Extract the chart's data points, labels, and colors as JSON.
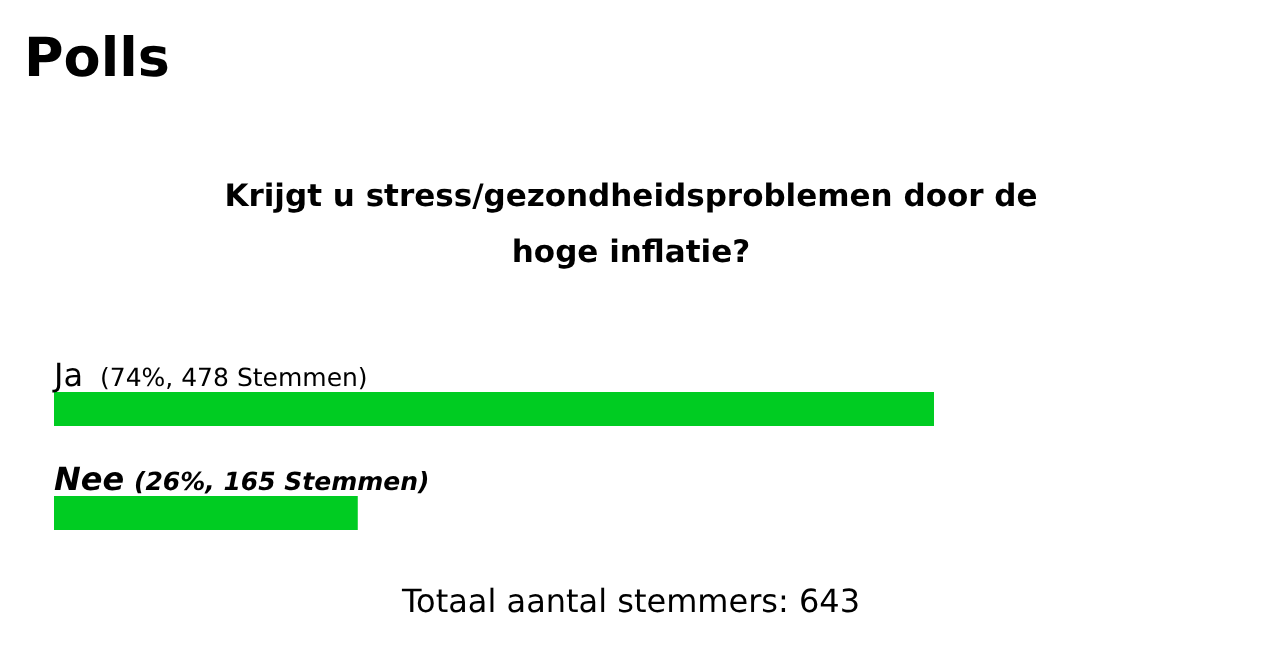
{
  "chart_data": {
    "type": "bar",
    "orientation": "horizontal",
    "title": "Polls",
    "subtitle": "Krijgt u stress/gezondheidsproblemen door de hoge inflatie?",
    "categories": [
      "Ja",
      "Nee"
    ],
    "values": [
      478,
      165
    ],
    "value_labels": [
      "(74%, 478 Stemmen)",
      "(26%, 165 Stemmen)"
    ],
    "color": "#00cc22",
    "annotations": [
      "Totaal aantal stemmers: 643"
    ],
    "data_labels": false
  }
}
